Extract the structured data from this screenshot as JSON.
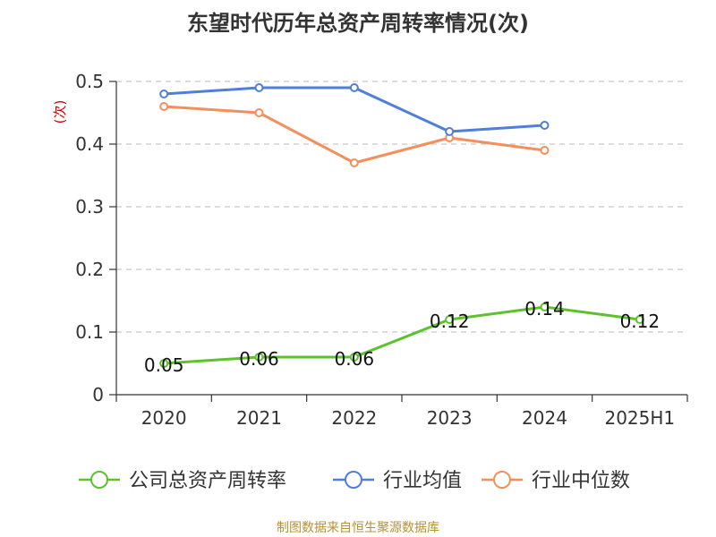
{
  "chart_data": {
    "type": "line",
    "title": "东望时代历年总资产周转率情况(次)",
    "ylabel": "(次)",
    "xlabel": "",
    "categories": [
      "2020",
      "2021",
      "2022",
      "2023",
      "2024",
      "2025H1"
    ],
    "ylim": [
      0,
      0.5
    ],
    "yticks": [
      0,
      0.1,
      0.2,
      0.3,
      0.4,
      0.5
    ],
    "ytick_labels": [
      "0",
      "0.1",
      "0.2",
      "0.3",
      "0.4",
      "0.5"
    ],
    "grid": true,
    "legend_position": "bottom",
    "series": [
      {
        "name": "公司总资产周转率",
        "color": "#5cc22b",
        "values": [
          0.05,
          0.06,
          0.06,
          0.12,
          0.14,
          0.12
        ],
        "data_labels": [
          "0.05",
          "0.06",
          "0.06",
          "0.12",
          "0.14",
          "0.12"
        ]
      },
      {
        "name": "行业均值",
        "color": "#4f7fd9",
        "values": [
          0.48,
          0.49,
          0.49,
          0.42,
          0.43,
          null
        ]
      },
      {
        "name": "行业中位数",
        "color": "#f38f5a",
        "values": [
          0.46,
          0.45,
          0.37,
          0.41,
          0.39,
          null
        ]
      }
    ]
  },
  "footer": {
    "source": "制图数据来自恒生聚源数据库"
  },
  "colors": {
    "axis": "#333333",
    "grid": "#c8c8c8",
    "ylabel": "#cc0000",
    "title": "#333333",
    "source": "#b8912f"
  }
}
